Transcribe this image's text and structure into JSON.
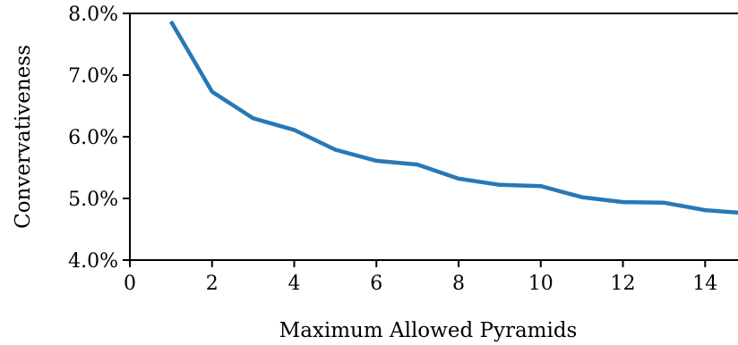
{
  "chart_data": {
    "type": "line",
    "title": "",
    "xlabel": "Maximum Allowed Pyramids",
    "ylabel": "Convervativeness",
    "xlim": [
      0,
      14.8
    ],
    "ylim": [
      4.0,
      8.0
    ],
    "x_ticks": [
      0,
      2,
      4,
      6,
      8,
      10,
      12,
      14
    ],
    "x_tick_labels": [
      "0",
      "2",
      "4",
      "6",
      "8",
      "10",
      "12",
      "14"
    ],
    "y_ticks": [
      4.0,
      5.0,
      6.0,
      7.0,
      8.0
    ],
    "y_tick_labels": [
      "4.0%",
      "5.0%",
      "6.0%",
      "7.0%",
      "8.0%"
    ],
    "grid": false,
    "series": [
      {
        "color": "#2878b5",
        "x": [
          1,
          2,
          3,
          4,
          5,
          6,
          7,
          8,
          9,
          10,
          11,
          12,
          13,
          14,
          15
        ],
        "y": [
          7.87,
          6.73,
          6.3,
          6.11,
          5.79,
          5.61,
          5.55,
          5.32,
          5.22,
          5.2,
          5.02,
          4.94,
          4.93,
          4.81,
          4.76
        ]
      }
    ]
  }
}
